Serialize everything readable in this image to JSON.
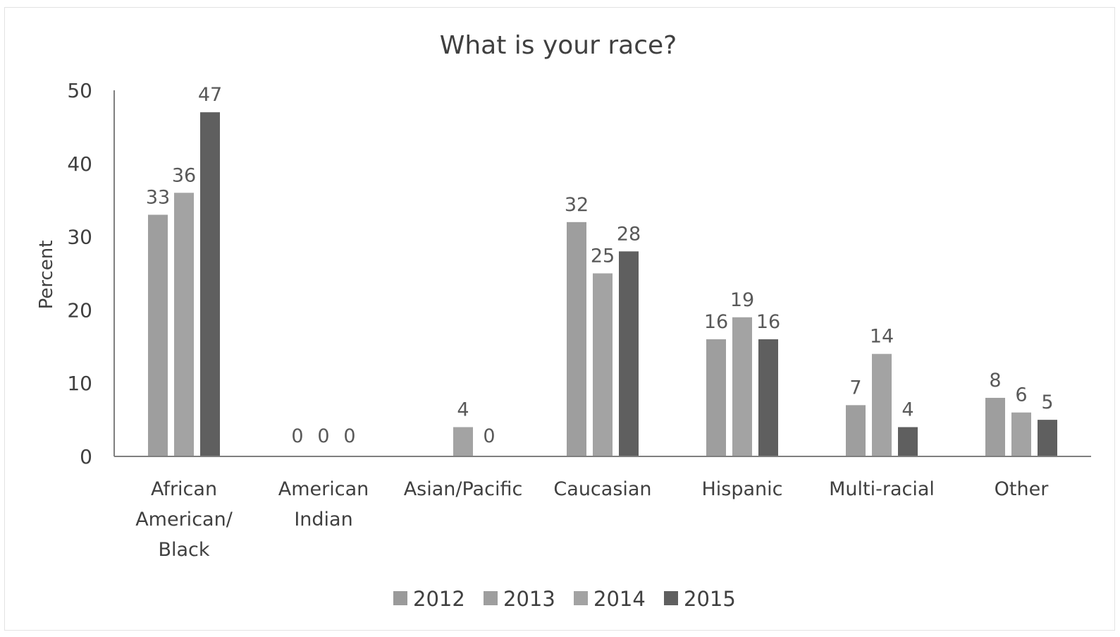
{
  "chart_data": {
    "type": "bar",
    "title": "What is your race?",
    "xlabel": "",
    "ylabel": "Percent",
    "ylim": [
      0,
      50
    ],
    "yticks": [
      0,
      10,
      20,
      30,
      40,
      50
    ],
    "grid": false,
    "legend_position": "bottom",
    "categories": [
      [
        "African",
        "American/",
        "Black"
      ],
      [
        "American",
        "Indian"
      ],
      [
        "Asian/Pacific"
      ],
      [
        "Caucasian"
      ],
      [
        "Hispanic"
      ],
      [
        "Multi-racial"
      ],
      [
        "Other"
      ]
    ],
    "series": [
      {
        "name": "2012",
        "color": "#9a9a9a",
        "values": [
          null,
          null,
          null,
          null,
          null,
          null,
          null
        ]
      },
      {
        "name": "2013",
        "color": "#9e9e9e",
        "values": [
          33,
          0,
          null,
          32,
          16,
          7,
          8
        ]
      },
      {
        "name": "2014",
        "color": "#a3a3a3",
        "values": [
          36,
          0,
          4,
          25,
          19,
          14,
          6
        ]
      },
      {
        "name": "2015",
        "color": "#5f5f5f",
        "values": [
          47,
          0,
          0,
          28,
          16,
          4,
          5
        ]
      }
    ]
  }
}
